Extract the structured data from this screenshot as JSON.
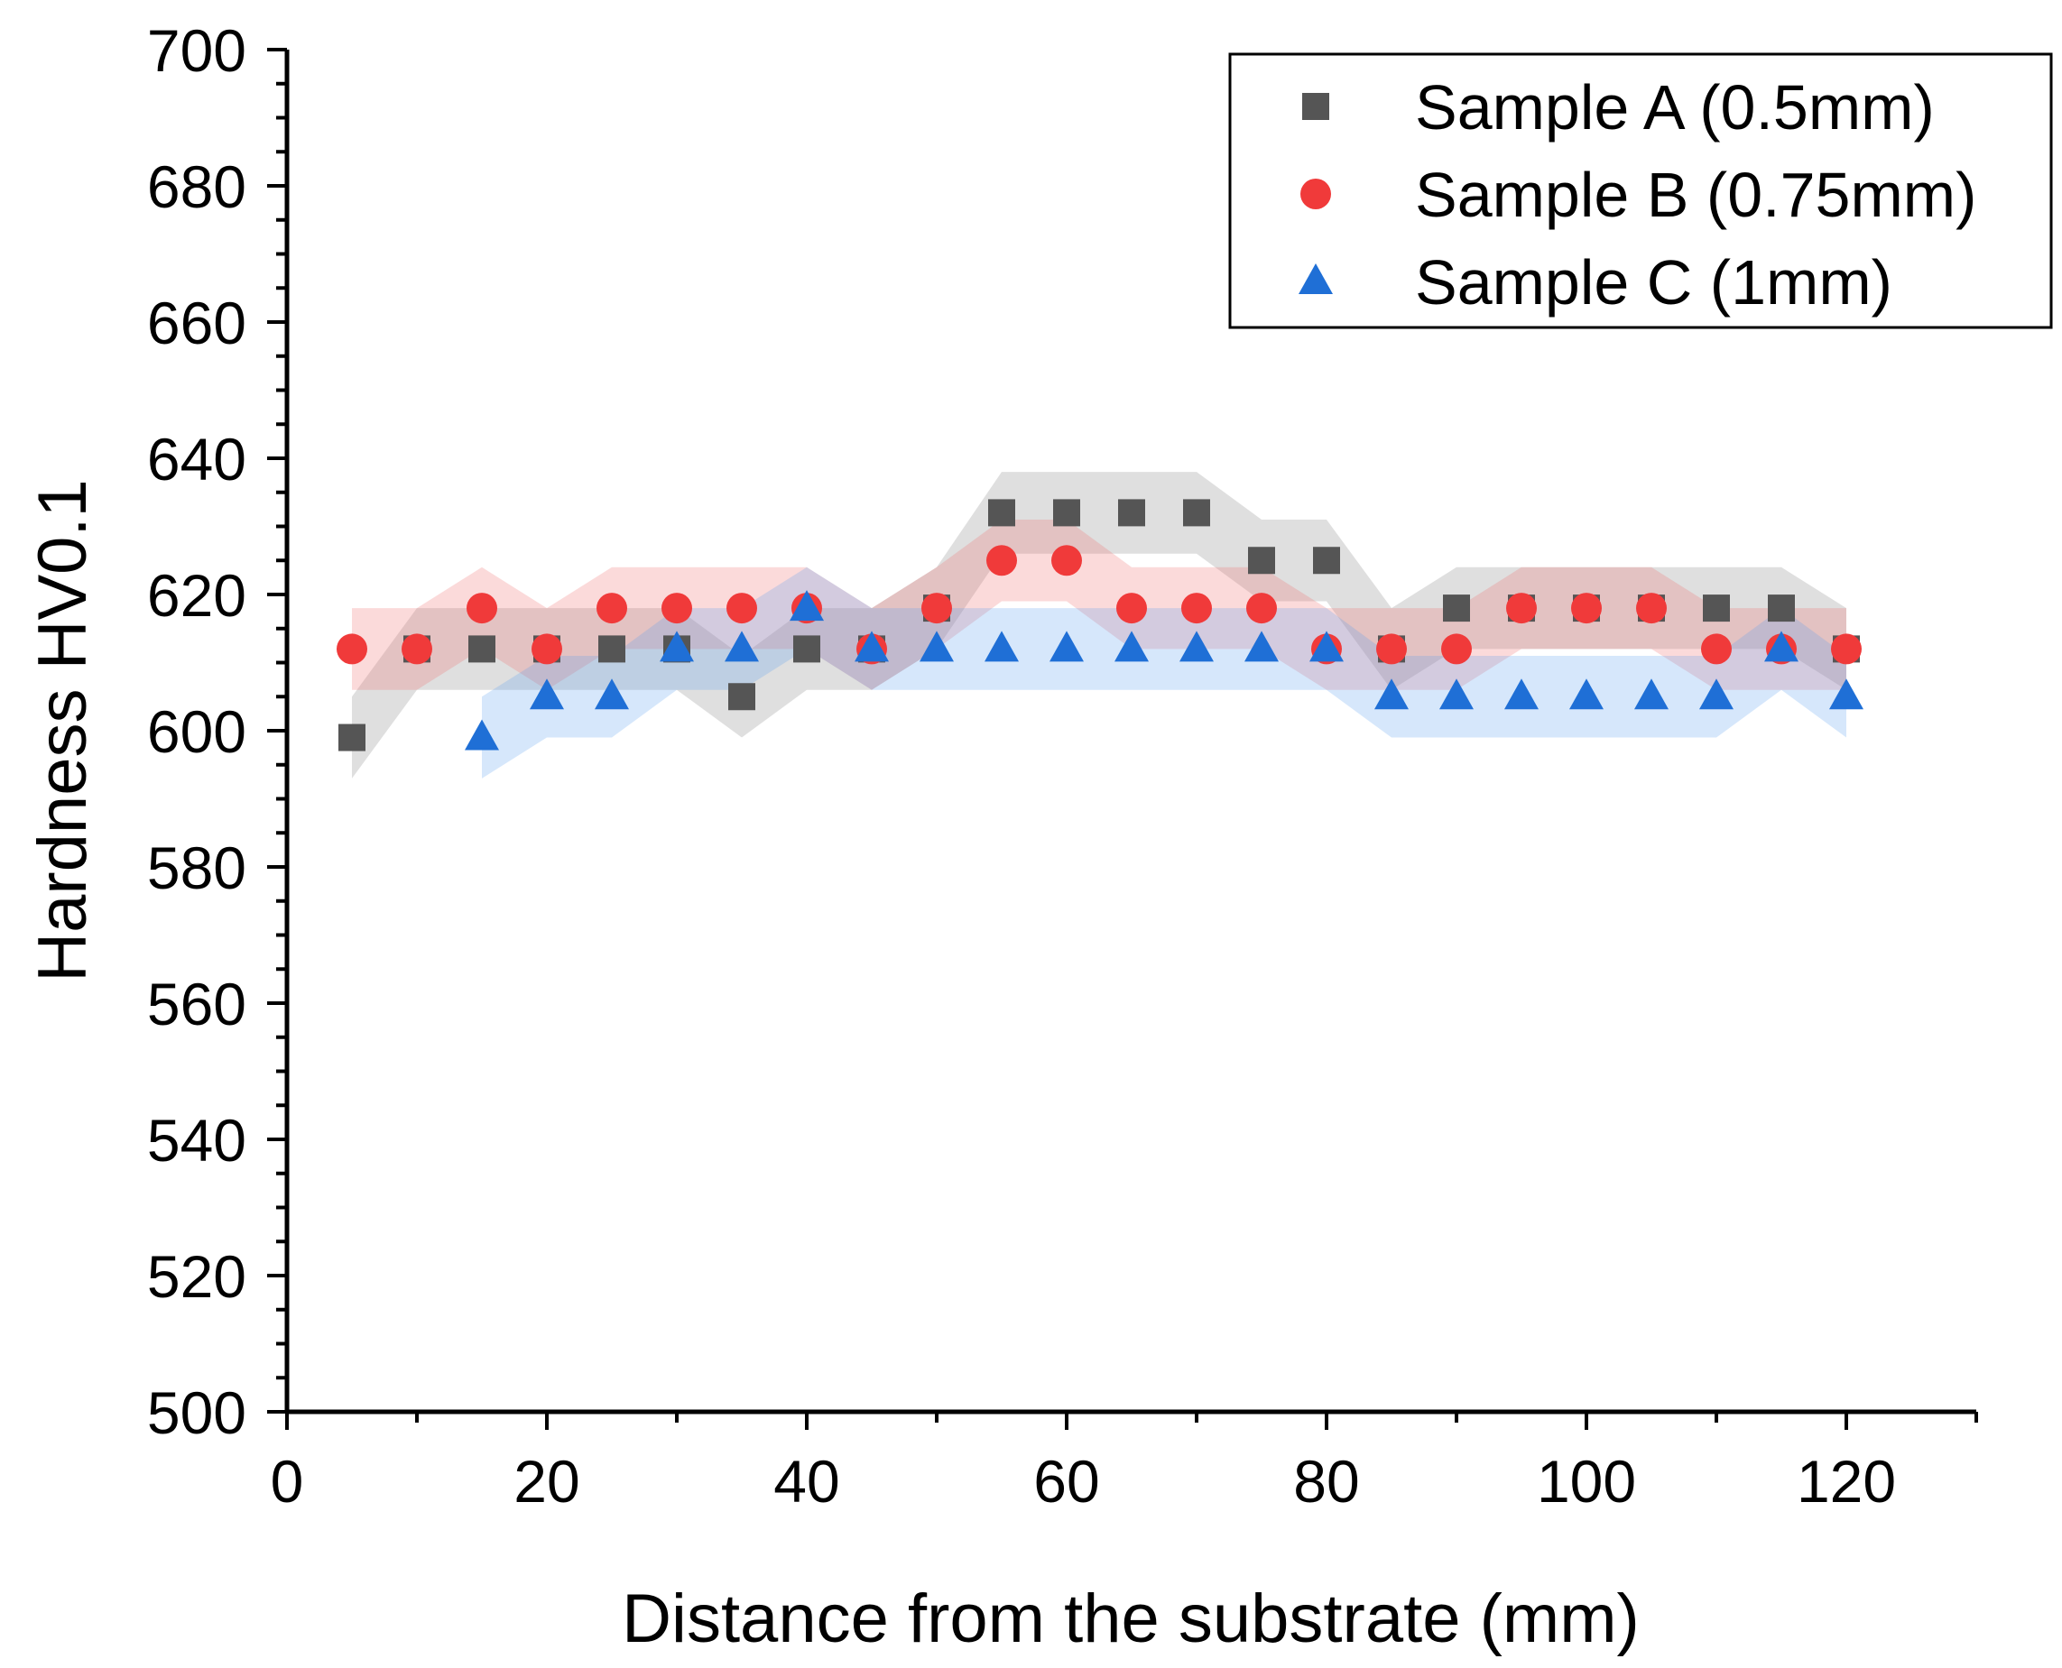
{
  "chart_data": {
    "type": "scatter",
    "title": "",
    "xlabel": "Distance from the substrate (mm)",
    "ylabel": "Hardness HV0.1",
    "xlim": [
      0,
      130
    ],
    "ylim": [
      500,
      700
    ],
    "x_ticks": [
      "0",
      "20",
      "40",
      "60",
      "80",
      "100",
      "120"
    ],
    "y_ticks": [
      "500",
      "520",
      "540",
      "560",
      "580",
      "600",
      "620",
      "640",
      "660",
      "680",
      "700"
    ],
    "series": [
      {
        "name": "Sample A (0.5mm)",
        "marker": "square",
        "color": "#555555",
        "band_color": "#808080",
        "x": [
          5,
          10,
          15,
          20,
          25,
          30,
          35,
          40,
          45,
          50,
          55,
          60,
          65,
          70,
          75,
          80,
          85,
          90,
          95,
          100,
          105,
          110,
          115,
          120
        ],
        "values": [
          599,
          612,
          612,
          612,
          612,
          612,
          605,
          612,
          612,
          618,
          632,
          632,
          632,
          632,
          625,
          625,
          612,
          618,
          618,
          618,
          618,
          618,
          618,
          612
        ]
      },
      {
        "name": "Sample B (0.75mm)",
        "marker": "circle",
        "color": "#f03a3a",
        "band_color": "#f06a6a",
        "x": [
          5,
          10,
          15,
          20,
          25,
          30,
          35,
          40,
          45,
          50,
          55,
          60,
          65,
          70,
          75,
          80,
          85,
          90,
          95,
          100,
          105,
          110,
          115,
          120
        ],
        "values": [
          612,
          612,
          618,
          612,
          618,
          618,
          618,
          618,
          612,
          618,
          625,
          625,
          618,
          618,
          618,
          612,
          612,
          612,
          618,
          618,
          618,
          612,
          612,
          612
        ]
      },
      {
        "name": "Sample C (1mm)",
        "marker": "triangle",
        "color": "#1f6fd6",
        "band_color": "#5aa0f0",
        "x": [
          15,
          20,
          25,
          30,
          35,
          40,
          45,
          50,
          55,
          60,
          65,
          70,
          75,
          80,
          85,
          90,
          95,
          100,
          105,
          110,
          115,
          120
        ],
        "values": [
          599,
          605,
          605,
          612,
          612,
          618,
          612,
          612,
          612,
          612,
          612,
          612,
          612,
          612,
          605,
          605,
          605,
          605,
          605,
          605,
          612,
          605
        ]
      }
    ],
    "band_halfwidth": 6,
    "legend_position": "top-right"
  }
}
